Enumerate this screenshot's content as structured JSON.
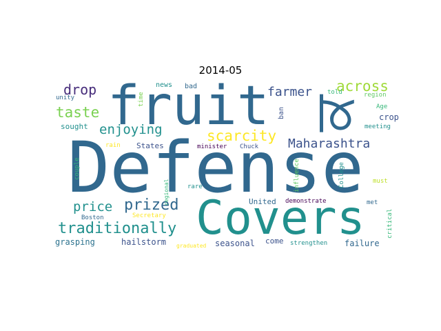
{
  "title": "2014-05",
  "words": [
    {
      "text": "Defense",
      "color": "#31688e",
      "weight": 1.0,
      "rotated": false
    },
    {
      "text": "fruit",
      "color": "#31688e",
      "weight": 0.55,
      "rotated": false
    },
    {
      "text": "Covers",
      "color": "#21908d",
      "weight": 0.6,
      "rotated": false
    },
    {
      "text": "ਕ",
      "color": "#31688e",
      "weight": 0.5,
      "rotated": true
    },
    {
      "text": "Maharashtra",
      "color": "#3b528b",
      "weight": 0.2,
      "rotated": false
    },
    {
      "text": "scarcity",
      "color": "#fde725",
      "weight": 0.22,
      "rotated": false
    },
    {
      "text": "traditionally",
      "color": "#21908d",
      "weight": 0.22,
      "rotated": false
    },
    {
      "text": "prized",
      "color": "#31688e",
      "weight": 0.22,
      "rotated": false
    },
    {
      "text": "across",
      "color": "#a0da39",
      "weight": 0.2,
      "rotated": false
    },
    {
      "text": "taste",
      "color": "#7ad151",
      "weight": 0.2,
      "rotated": false
    },
    {
      "text": "enjoying",
      "color": "#21908d",
      "weight": 0.18,
      "rotated": false
    },
    {
      "text": "price",
      "color": "#21908d",
      "weight": 0.18,
      "rotated": false
    },
    {
      "text": "drop",
      "color": "#472d7b",
      "weight": 0.18,
      "rotated": false
    },
    {
      "text": "farmer",
      "color": "#3b528b",
      "weight": 0.17,
      "rotated": false
    },
    {
      "text": "crop",
      "color": "#3b528b",
      "weight": 0.1,
      "rotated": false
    },
    {
      "text": "grasping",
      "color": "#2c728e",
      "weight": 0.1,
      "rotated": false
    },
    {
      "text": "hailstorm",
      "color": "#3b528b",
      "weight": 0.1,
      "rotated": false
    },
    {
      "text": "seasonal",
      "color": "#3b528b",
      "weight": 0.1,
      "rotated": false
    },
    {
      "text": "failure",
      "color": "#31688e",
      "weight": 0.1,
      "rotated": false
    },
    {
      "text": "sought",
      "color": "#21908d",
      "weight": 0.09,
      "rotated": false
    },
    {
      "text": "States",
      "color": "#3b528b",
      "weight": 0.09,
      "rotated": false
    },
    {
      "text": "United",
      "color": "#31688e",
      "weight": 0.09,
      "rotated": false
    },
    {
      "text": "come",
      "color": "#3b528b",
      "weight": 0.09,
      "rotated": false
    },
    {
      "text": "news",
      "color": "#21908d",
      "weight": 0.08,
      "rotated": false
    },
    {
      "text": "bad",
      "color": "#31688e",
      "weight": 0.08,
      "rotated": false
    },
    {
      "text": "told",
      "color": "#35b779",
      "weight": 0.07,
      "rotated": false
    },
    {
      "text": "region",
      "color": "#5ec962",
      "weight": 0.07,
      "rotated": false
    },
    {
      "text": "unity",
      "color": "#31688e",
      "weight": 0.07,
      "rotated": false
    },
    {
      "text": "Age",
      "color": "#35b779",
      "weight": 0.07,
      "rotated": false
    },
    {
      "text": "meeting",
      "color": "#21908d",
      "weight": 0.07,
      "rotated": false
    },
    {
      "text": "rain",
      "color": "#fde725",
      "weight": 0.07,
      "rotated": false
    },
    {
      "text": "minister",
      "color": "#440154",
      "weight": 0.07,
      "rotated": false
    },
    {
      "text": "Chuck",
      "color": "#3b528b",
      "weight": 0.07,
      "rotated": false
    },
    {
      "text": "rare",
      "color": "#21908d",
      "weight": 0.07,
      "rotated": false
    },
    {
      "text": "must",
      "color": "#bddf26",
      "weight": 0.07,
      "rotated": false
    },
    {
      "text": "demonstrate",
      "color": "#440154",
      "weight": 0.07,
      "rotated": false
    },
    {
      "text": "met",
      "color": "#31688e",
      "weight": 0.07,
      "rotated": false
    },
    {
      "text": "Boston",
      "color": "#31688e",
      "weight": 0.07,
      "rotated": false
    },
    {
      "text": "Secretary",
      "color": "#fde725",
      "weight": 0.07,
      "rotated": false
    },
    {
      "text": "strengthen",
      "color": "#21908d",
      "weight": 0.07,
      "rotated": false
    },
    {
      "text": "graduated",
      "color": "#fde725",
      "weight": 0.06,
      "rotated": false
    },
    {
      "text": "ban",
      "color": "#3b528b",
      "weight": 0.07,
      "rotated": true
    },
    {
      "text": "time",
      "color": "#7ad151",
      "weight": 0.07,
      "rotated": true
    },
    {
      "text": "couple",
      "color": "#35b779",
      "weight": 0.07,
      "rotated": true
    },
    {
      "text": "regional",
      "color": "#35b779",
      "weight": 0.07,
      "rotated": true
    },
    {
      "text": "influence",
      "color": "#5ec962",
      "weight": 0.07,
      "rotated": true
    },
    {
      "text": "College",
      "color": "#21908d",
      "weight": 0.07,
      "rotated": true
    },
    {
      "text": "critical",
      "color": "#35b779",
      "weight": 0.07,
      "rotated": true
    }
  ]
}
